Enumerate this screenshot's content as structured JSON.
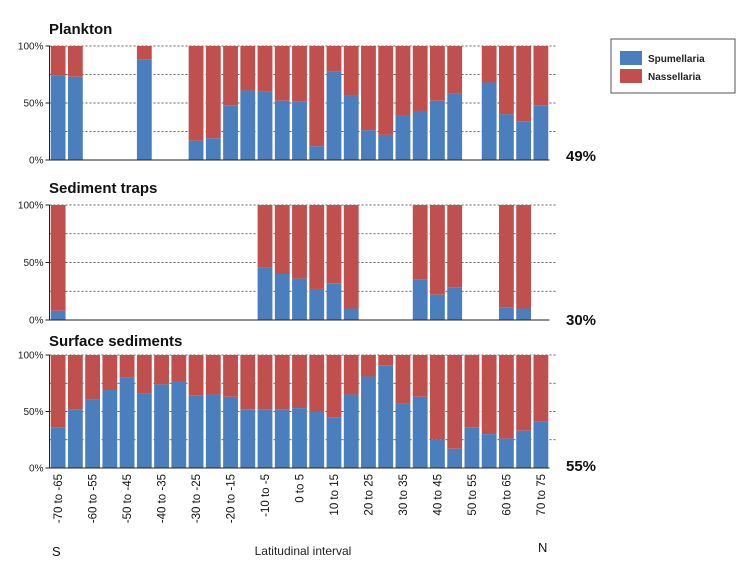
{
  "colors": {
    "spumellaria": "#4a7ebd",
    "nassellaria": "#c0504d"
  },
  "chart_data": {
    "type": "bar",
    "stacked": true,
    "categories": [
      "-70 to -65",
      "-65 to -60",
      "-60 to -55",
      "-55 to -50",
      "-50 to -45",
      "-45 to -40",
      "-40 to -35",
      "-35 to -30",
      "-30 to -25",
      "-25 to -20",
      "-20 to -15",
      "-15 to -10",
      "-10 to -5",
      "-5 to 0",
      "0 to 5",
      "5 to 10",
      "10 to 15",
      "15 to 20",
      "20 to 25",
      "25 to 30",
      "30 to 35",
      "35 to 40",
      "40 to 45",
      "45 to 50",
      "50 to 55",
      "55 to 60",
      "60 to 65",
      "65 to 70",
      "70 to 75"
    ],
    "x_tick_labels": [
      "-70 to -65",
      "-60 to -55",
      "-50 to -45",
      "-40 to -35",
      "-30 to -25",
      "-20 to -15",
      "-10 to -5",
      "0 to 5",
      "10 to 15",
      "20 to 25",
      "30 to 35",
      "40 to 45",
      "50 to 55",
      "60 to 65",
      "70 to 75"
    ],
    "xlabel": "Latitudinal interval",
    "x_ends": {
      "left": "S",
      "right": "N"
    },
    "y_tick_labels": [
      "0%",
      "50%",
      "100%"
    ],
    "ylim": [
      0,
      100
    ],
    "legend": {
      "placement": "top-right",
      "entries": [
        "Spumellaria",
        "Nassellaria"
      ]
    },
    "panels": [
      {
        "title": "Plankton",
        "summary": "49%",
        "spumellaria": [
          74,
          73,
          null,
          null,
          null,
          88,
          null,
          null,
          17,
          19,
          48,
          61,
          60,
          52,
          51,
          12,
          78,
          57,
          26,
          22,
          39,
          43,
          52,
          58,
          null,
          68,
          40,
          34,
          48
        ]
      },
      {
        "title": "Sediment traps",
        "summary": "30%",
        "spumellaria": [
          8,
          null,
          null,
          null,
          null,
          null,
          null,
          null,
          null,
          null,
          null,
          null,
          46,
          40,
          36,
          27,
          32,
          10,
          null,
          null,
          null,
          35,
          22,
          28,
          null,
          null,
          11,
          10,
          null
        ]
      },
      {
        "title": "Surface sediments",
        "summary": "55%",
        "spumellaria": [
          36,
          52,
          61,
          69,
          80,
          66,
          74,
          77,
          64,
          65,
          63,
          52,
          52,
          52,
          53,
          50,
          45,
          65,
          81,
          91,
          57,
          63,
          25,
          17,
          36,
          30,
          26,
          33,
          41
        ]
      }
    ]
  }
}
